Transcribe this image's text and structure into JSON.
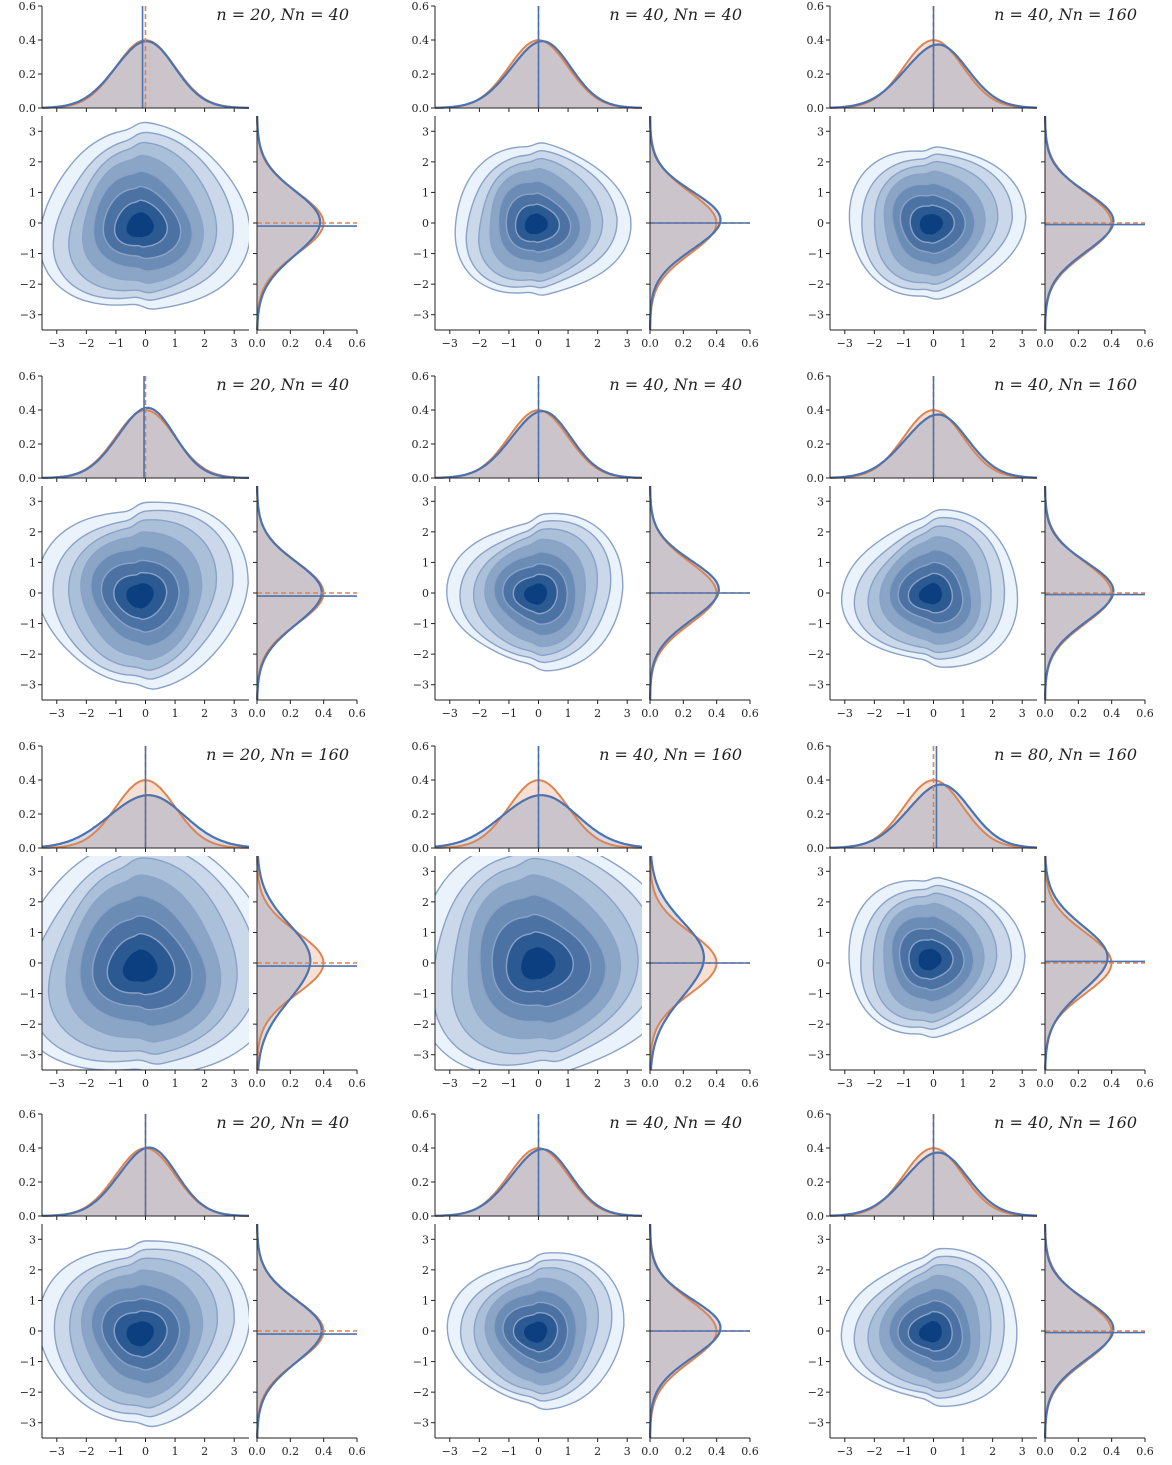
{
  "colors": {
    "joint_fill_light": "#eaf2fb",
    "joint_fill_dark": "#0b3f80",
    "contour_line": "#8aa2c8",
    "posterior_line": "#4c72b0",
    "prior_line": "#dd8452",
    "overlap_fill": "#c7b8c0",
    "axis": "#222222"
  },
  "chart_data": {
    "type": "grid of joint density plots (kde contours with marginal densities)",
    "rows": 4,
    "cols": 3,
    "x_ticks": [
      "−3",
      "−2",
      "−1",
      "0",
      "1",
      "2",
      "3"
    ],
    "y_ticks": [
      "−3",
      "−2",
      "−1",
      "0",
      "1",
      "2",
      "3"
    ],
    "top_marginal_ticks": [
      "0.0",
      "0.2",
      "0.4",
      "0.6"
    ],
    "right_marginal_ticks": [
      "0.0",
      "0.2",
      "0.4",
      "0.6"
    ],
    "xlim": [
      -3.5,
      3.5
    ],
    "ylim": [
      -3.5,
      3.5
    ],
    "marginal_ylim": [
      0,
      0.6
    ],
    "series": [
      {
        "role": "estimated",
        "color": "#4c72b0"
      },
      {
        "role": "reference normal",
        "color": "#dd8452"
      }
    ],
    "panels": [
      {
        "title": "n = 20, Nn = 40",
        "cx": -0.2,
        "cy": -0.1,
        "sx": 1.25,
        "sy": 1.15,
        "rho": -0.15,
        "peak_x": 0.39,
        "peak_y": 0.38,
        "spread": 1.0,
        "mean_x_est": -0.1,
        "mean_x_ref": 0.0,
        "mean_y_est": -0.1,
        "mean_y_ref": 0.0
      },
      {
        "title": "n = 40, Nn = 40",
        "cx": -0.1,
        "cy": -0.05,
        "sx": 1.05,
        "sy": 0.95,
        "rho": -0.1,
        "peak_x": 0.39,
        "peak_y": 0.42,
        "spread": 0.85,
        "mean_x_est": 0.0,
        "mean_x_ref": 0.0,
        "mean_y_est": 0.0,
        "mean_y_ref": 0.0
      },
      {
        "title": "n = 40, Nn = 160",
        "cx": -0.1,
        "cy": -0.05,
        "sx": 1.05,
        "sy": 0.95,
        "rho": -0.1,
        "peak_x": 0.37,
        "peak_y": 0.41,
        "spread": 0.85,
        "mean_x_est": 0.0,
        "mean_x_ref": 0.0,
        "mean_y_est": -0.05,
        "mean_y_ref": 0.0
      },
      {
        "title": "n = 20, Nn = 40",
        "cx": -0.2,
        "cy": -0.1,
        "sx": 1.25,
        "sy": 1.15,
        "rho": -0.15,
        "peak_x": 0.41,
        "peak_y": 0.39,
        "spread": 1.0,
        "mean_x_est": -0.05,
        "mean_x_ref": 0.0,
        "mean_y_est": -0.1,
        "mean_y_ref": 0.0
      },
      {
        "title": "n = 40, Nn = 40",
        "cx": -0.1,
        "cy": -0.05,
        "sx": 1.05,
        "sy": 0.95,
        "rho": -0.1,
        "peak_x": 0.39,
        "peak_y": 0.41,
        "spread": 0.85,
        "mean_x_est": 0.0,
        "mean_x_ref": 0.0,
        "mean_y_est": 0.0,
        "mean_y_ref": 0.0
      },
      {
        "title": "n = 40, Nn = 160",
        "cx": -0.1,
        "cy": -0.05,
        "sx": 1.05,
        "sy": 0.95,
        "rho": -0.1,
        "peak_x": 0.37,
        "peak_y": 0.41,
        "spread": 0.85,
        "mean_x_est": 0.0,
        "mean_x_ref": 0.0,
        "mean_y_est": -0.05,
        "mean_y_ref": 0.0
      },
      {
        "title": "n = 20, Nn = 160",
        "cx": -0.2,
        "cy": -0.15,
        "sx": 1.6,
        "sy": 1.5,
        "rho": -0.2,
        "peak_x": 0.31,
        "peak_y": 0.32,
        "spread": 1.3,
        "mean_x_est": 0.0,
        "mean_x_ref": 0.0,
        "mean_y_est": -0.1,
        "mean_y_ref": 0.0
      },
      {
        "title": "n = 40, Nn = 160",
        "cx": -0.05,
        "cy": -0.05,
        "sx": 1.6,
        "sy": 1.5,
        "rho": -0.25,
        "peak_x": 0.31,
        "peak_y": 0.32,
        "spread": 1.3,
        "mean_x_est": 0.0,
        "mean_x_ref": 0.0,
        "mean_y_est": 0.0,
        "mean_y_ref": 0.0
      },
      {
        "title": "n = 80, Nn = 160",
        "cx": -0.15,
        "cy": 0.1,
        "sx": 1.05,
        "sy": 1.0,
        "rho": -0.05,
        "peak_x": 0.37,
        "peak_y": 0.37,
        "spread": 0.9,
        "mean_x_est": 0.1,
        "mean_x_ref": 0.0,
        "mean_y_est": 0.05,
        "mean_y_ref": 0.0
      },
      {
        "title": "n = 20, Nn = 40",
        "cx": -0.2,
        "cy": -0.1,
        "sx": 1.25,
        "sy": 1.15,
        "rho": -0.15,
        "peak_x": 0.4,
        "peak_y": 0.39,
        "spread": 1.0,
        "mean_x_est": 0.0,
        "mean_x_ref": 0.0,
        "mean_y_est": -0.1,
        "mean_y_ref": 0.0
      },
      {
        "title": "n = 40, Nn = 40",
        "cx": -0.1,
        "cy": -0.05,
        "sx": 1.05,
        "sy": 0.95,
        "rho": -0.1,
        "peak_x": 0.39,
        "peak_y": 0.42,
        "spread": 0.85,
        "mean_x_est": 0.0,
        "mean_x_ref": 0.0,
        "mean_y_est": 0.0,
        "mean_y_ref": 0.0
      },
      {
        "title": "n = 40, Nn = 160",
        "cx": -0.1,
        "cy": -0.05,
        "sx": 1.05,
        "sy": 0.95,
        "rho": -0.1,
        "peak_x": 0.37,
        "peak_y": 0.41,
        "spread": 0.85,
        "mean_x_est": 0.0,
        "mean_x_ref": 0.0,
        "mean_y_est": -0.05,
        "mean_y_ref": 0.0
      }
    ]
  }
}
